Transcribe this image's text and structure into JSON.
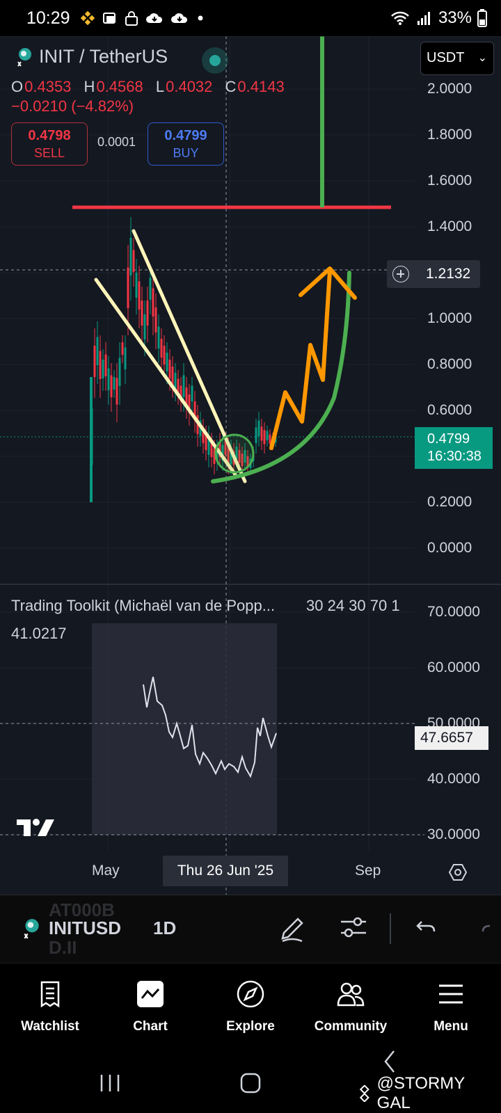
{
  "status_bar": {
    "time": "10:29",
    "battery": "33%",
    "icons": [
      "binance-icon",
      "teams-icon",
      "lock-icon",
      "cloud-download-icon",
      "dot-icon",
      "wifi-icon",
      "signal-icon",
      "battery-icon"
    ]
  },
  "chart": {
    "symbol_title": "INIT / TetherUS",
    "ohlc": {
      "o_label": "O",
      "o": "0.4353",
      "h_label": "H",
      "h": "0.4568",
      "l_label": "L",
      "l": "0.4032",
      "c_label": "C",
      "c": "0.4143"
    },
    "change": "−0.0210 (−4.82%)",
    "sell": {
      "price": "0.4798",
      "label": "SELL"
    },
    "buy": {
      "price": "0.4799",
      "label": "BUY"
    },
    "spread": "0.0001",
    "currency": "USDT",
    "price_axis": [
      "2.0000",
      "1.8000",
      "1.6000",
      "1.4000",
      "1.0000",
      "0.8000",
      "0.6000",
      "0.2000",
      "0.0000"
    ],
    "crosshair_price": "1.2132",
    "last_price": "0.4799",
    "countdown": "16:30:38",
    "time_axis": {
      "left": "May",
      "right": "Sep"
    },
    "crosshair_date": "Thu 26 Jun '25",
    "colors": {
      "up": "#089981",
      "down": "#f23645",
      "resistance": "#f23645",
      "wedge": "#fff5b8",
      "curve": "#4caf50",
      "arrow": "#ff9800"
    }
  },
  "indicator": {
    "title": "Trading Toolkit (Michaël van de Popp...",
    "params": "30 24 30 70 1",
    "value": "41.0217",
    "axis": [
      "70.0000",
      "60.0000",
      "50.0000",
      "40.0000",
      "30.0000"
    ],
    "current": "47.6657"
  },
  "toolbar": {
    "bg_text_1": "AT000B",
    "bg_text_2": "D.II",
    "symbol": "INITUSD",
    "interval": "1D"
  },
  "nav": {
    "items": [
      {
        "label": "Watchlist",
        "icon": "watchlist-icon"
      },
      {
        "label": "Chart",
        "icon": "chart-icon"
      },
      {
        "label": "Explore",
        "icon": "compass-icon"
      },
      {
        "label": "Community",
        "icon": "community-icon"
      },
      {
        "label": "Menu",
        "icon": "menu-icon"
      }
    ]
  },
  "watermark": "@STORMY GAL"
}
